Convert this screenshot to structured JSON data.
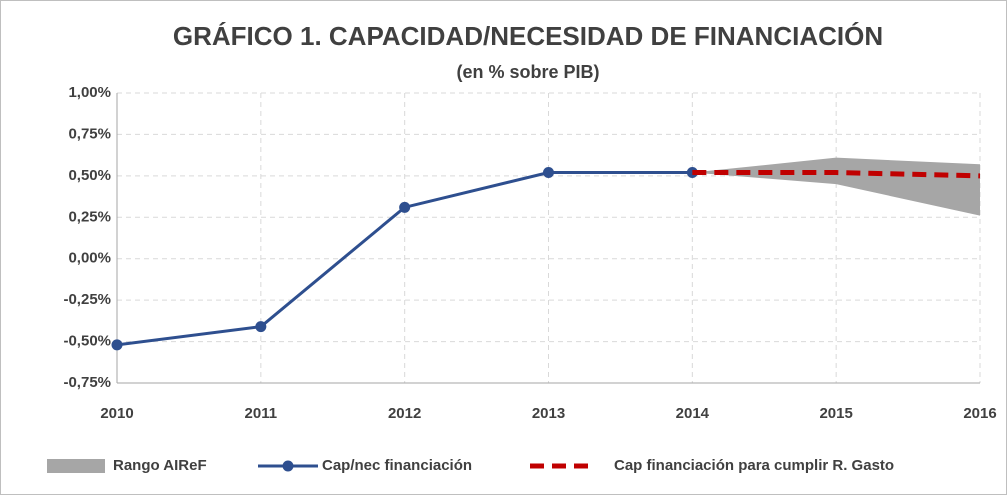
{
  "chart_data": {
    "type": "line",
    "title": "GRÁFICO 1. CAPACIDAD/NECESIDAD DE FINANCIACIÓN",
    "subtitle": "(en % sobre PIB)",
    "x": [
      2010,
      2011,
      2012,
      2013,
      2014,
      2015,
      2016
    ],
    "xlim": [
      2010,
      2016
    ],
    "xticks": [
      2010,
      2011,
      2012,
      2013,
      2014,
      2015,
      2016
    ],
    "ylim": [
      -0.75,
      1.0
    ],
    "yticks": [
      {
        "value": -0.75,
        "label": "-0,75%"
      },
      {
        "value": -0.5,
        "label": "-0,50%"
      },
      {
        "value": -0.25,
        "label": "-0,25%"
      },
      {
        "value": 0,
        "label": "0,00%"
      },
      {
        "value": 0.25,
        "label": "0,25%"
      },
      {
        "value": 0.5,
        "label": "0,50%"
      },
      {
        "value": 0.75,
        "label": "0,75%"
      },
      {
        "value": 1.0,
        "label": "1,00%"
      }
    ],
    "grid": true,
    "legend": "bottom",
    "series": [
      {
        "name": "Rango AIReF",
        "color": "#a6a6a6",
        "type": "range",
        "low": [
          null,
          null,
          null,
          null,
          0.52,
          0.45,
          0.26
        ],
        "high": [
          null,
          null,
          null,
          null,
          0.52,
          0.61,
          0.57
        ]
      },
      {
        "name": "Cap/nec financiación",
        "color": "#2e4f8f",
        "marker": true,
        "dash": false,
        "values": [
          -0.52,
          -0.41,
          0.31,
          0.52,
          0.52,
          null,
          null
        ]
      },
      {
        "name": "Cap financiación para cumplir R. Gasto",
        "color": "#c00000",
        "marker": false,
        "dash": true,
        "values": [
          null,
          null,
          null,
          null,
          0.52,
          0.52,
          0.5
        ]
      }
    ]
  }
}
